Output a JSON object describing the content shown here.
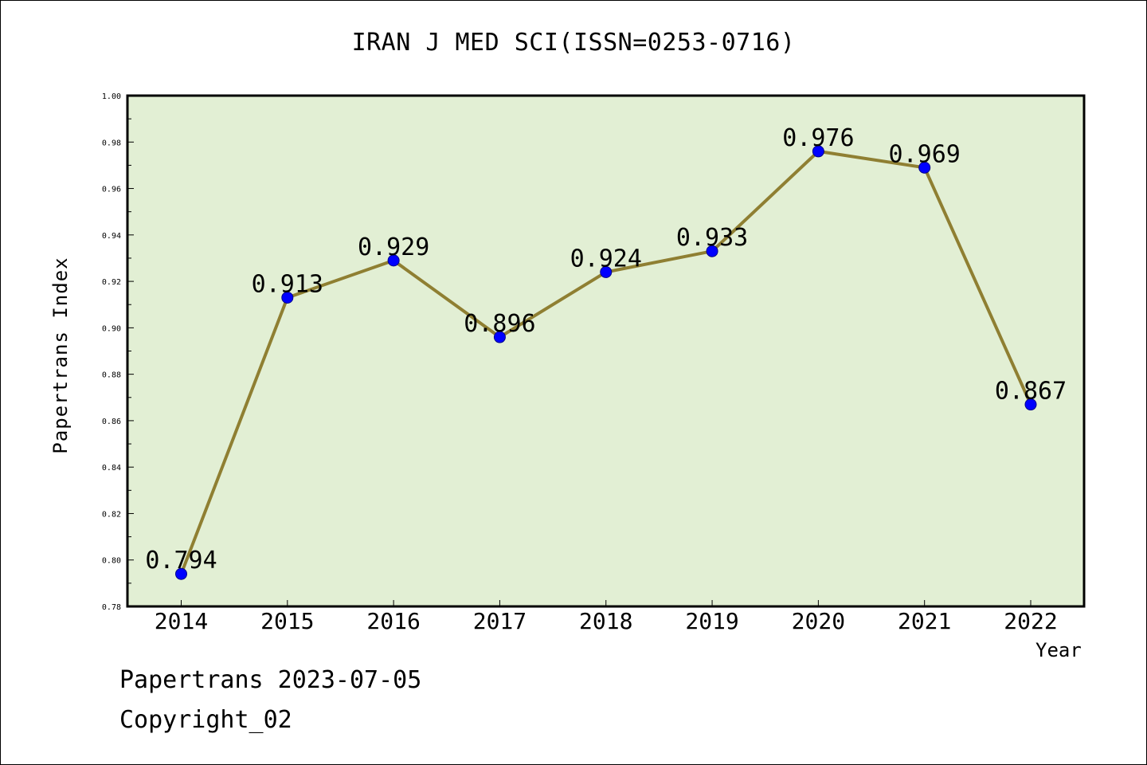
{
  "chart_data": {
    "type": "line",
    "title": "IRAN J MED SCI(ISSN=0253-0716)",
    "xlabel": "Year",
    "ylabel": "Papertrans Index",
    "categories": [
      "2014",
      "2015",
      "2016",
      "2017",
      "2018",
      "2019",
      "2020",
      "2021",
      "2022"
    ],
    "series": [
      {
        "values": [
          0.794,
          0.913,
          0.929,
          0.896,
          0.924,
          0.933,
          0.976,
          0.969,
          0.867
        ],
        "labels": [
          "0.794",
          "0.913",
          "0.929",
          "0.896",
          "0.924",
          "0.933",
          "0.976",
          "0.969",
          "0.867"
        ]
      }
    ],
    "ylim": [
      0.78,
      1.0
    ],
    "yticks": [
      "0.78",
      "0.80",
      "0.82",
      "0.84",
      "0.86",
      "0.88",
      "0.90",
      "0.92",
      "0.94",
      "0.96",
      "0.98",
      "1.00"
    ],
    "grid": false,
    "legend": "none"
  },
  "footer": {
    "date": "Papertrans 2023-07-05",
    "copyright": "Copyright_02"
  },
  "colors": {
    "plot_background": "#e2efd4",
    "line": "#8f7f32",
    "marker": "#0000ff"
  }
}
